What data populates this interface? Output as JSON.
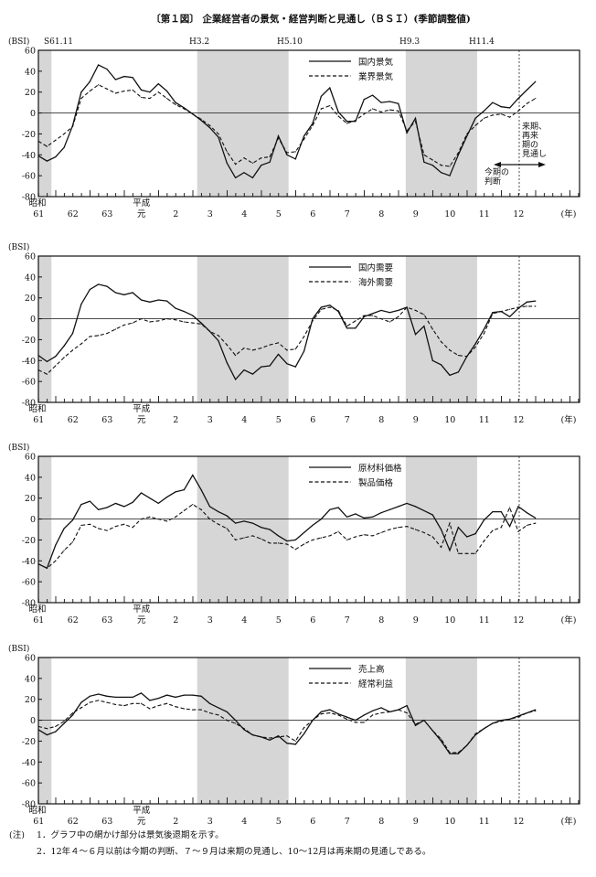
{
  "title": "〔第１図〕 企業経営者の景気・経営判断と見通し（ＢＳＩ）(季節調整値)",
  "colors": {
    "line": "#111111",
    "shading": "#d6d6d6",
    "zero_line": "#333333"
  },
  "x_axis": {
    "era_top": [
      "昭和",
      "平成"
    ],
    "years": [
      "61",
      "62",
      "63",
      "元",
      "2",
      "3",
      "4",
      "5",
      "6",
      "7",
      "8",
      "9",
      "10",
      "11",
      "12"
    ],
    "unit": "(年)"
  },
  "recession_labels": [
    "S61.11",
    "H3.2",
    "H5.10",
    "H9.3",
    "H11.4"
  ],
  "forecast_annotations": {
    "current": [
      "今期の",
      "判断"
    ],
    "forecast": [
      "来期、",
      "再来",
      "期の",
      "見通し"
    ]
  },
  "notes": {
    "marker": "(注)",
    "items": [
      "1．グラフ中の網かけ部分は景気後退期を示す。",
      "2．12年４～６月以前は今期の判断、７～９月は来期の見通し、10～12月は再来期の見通しである。"
    ]
  },
  "chart_data": [
    {
      "type": "line",
      "ylabel": "(BSI)",
      "ylim": [
        -80,
        60
      ],
      "yticks": [
        60,
        40,
        20,
        0,
        -20,
        -40,
        -60,
        -80
      ],
      "period": {
        "start": "1986 Q2",
        "end": "2000 Q4",
        "frequency": "quarterly"
      },
      "legend_position": "top-right",
      "series": [
        {
          "name": "国内景気",
          "style": "solid",
          "values": [
            -41,
            -46,
            -42,
            -33,
            -12,
            20,
            30,
            46,
            42,
            32,
            35,
            34,
            22,
            20,
            28,
            21,
            10,
            5,
            -1,
            -7,
            -14,
            -23,
            -48,
            -62,
            -57,
            -62,
            -50,
            -47,
            -22,
            -40,
            -44,
            -22,
            -10,
            16,
            24,
            1,
            -8,
            -8,
            13,
            17,
            10,
            11,
            9,
            -19,
            -5,
            -47,
            -50,
            -57,
            -60,
            -40,
            -22,
            -5,
            2,
            10,
            6,
            5,
            14,
            22,
            30
          ]
        },
        {
          "name": "業界景気",
          "style": "dashed",
          "values": [
            -27,
            -32,
            -26,
            -20,
            -13,
            14,
            21,
            27,
            23,
            19,
            21,
            22,
            15,
            14,
            20,
            14,
            8,
            4,
            -1,
            -6,
            -12,
            -20,
            -37,
            -49,
            -43,
            -48,
            -43,
            -42,
            -24,
            -38,
            -37,
            -25,
            -12,
            4,
            7,
            -3,
            -10,
            -7,
            -1,
            4,
            1,
            3,
            2,
            -17,
            -8,
            -40,
            -45,
            -50,
            -51,
            -38,
            -20,
            -12,
            -5,
            -2,
            -1,
            -4,
            2,
            9,
            14
          ]
        }
      ]
    },
    {
      "type": "line",
      "ylabel": "(BSI)",
      "ylim": [
        -80,
        60
      ],
      "yticks": [
        60,
        40,
        20,
        0,
        -20,
        -40,
        -60,
        -80
      ],
      "period": {
        "start": "1986 Q2",
        "end": "2000 Q4",
        "frequency": "quarterly"
      },
      "legend_position": "top-right",
      "series": [
        {
          "name": "国内需要",
          "style": "solid",
          "values": [
            -35,
            -41,
            -36,
            -26,
            -14,
            14,
            28,
            33,
            31,
            25,
            23,
            25,
            18,
            16,
            18,
            17,
            10,
            7,
            3,
            -4,
            -12,
            -21,
            -42,
            -58,
            -49,
            -53,
            -46,
            -45,
            -34,
            -43,
            -46,
            -31,
            0,
            11,
            13,
            7,
            -9,
            -9,
            2,
            5,
            8,
            6,
            8,
            11,
            -15,
            -7,
            -40,
            -44,
            -54,
            -51,
            -36,
            -24,
            -10,
            6,
            7,
            2,
            10,
            16,
            17
          ]
        },
        {
          "name": "海外需要",
          "style": "dashed",
          "values": [
            -49,
            -53,
            -45,
            -37,
            -30,
            -24,
            -17,
            -16,
            -14,
            -10,
            -6,
            -4,
            0,
            -3,
            -2,
            0,
            -1,
            -3,
            -4,
            -5,
            -12,
            -16,
            -25,
            -35,
            -28,
            -30,
            -28,
            -25,
            -23,
            -30,
            -29,
            -17,
            -2,
            9,
            11,
            8,
            -7,
            -2,
            3,
            3,
            0,
            -3,
            2,
            11,
            8,
            4,
            -10,
            -22,
            -30,
            -35,
            -36,
            -27,
            -14,
            5,
            7,
            9,
            11,
            12,
            12
          ]
        }
      ]
    },
    {
      "type": "line",
      "ylabel": "(BSI)",
      "ylim": [
        -80,
        60
      ],
      "yticks": [
        60,
        40,
        20,
        0,
        -20,
        -40,
        -60,
        -80
      ],
      "period": {
        "start": "1986 Q2",
        "end": "2000 Q4",
        "frequency": "quarterly"
      },
      "legend_position": "top-right",
      "series": [
        {
          "name": "原材料価格",
          "style": "solid",
          "values": [
            -43,
            -47,
            -25,
            -9,
            -1,
            14,
            17,
            9,
            11,
            15,
            12,
            16,
            25,
            20,
            15,
            21,
            26,
            28,
            42,
            28,
            12,
            7,
            3,
            -4,
            -2,
            -4,
            -8,
            -10,
            -16,
            -21,
            -20,
            -13,
            -6,
            0,
            9,
            11,
            2,
            5,
            1,
            2,
            6,
            9,
            12,
            15,
            12,
            8,
            4,
            -10,
            -30,
            -8,
            -17,
            -14,
            -1,
            7,
            7,
            -7,
            12,
            6,
            1
          ]
        },
        {
          "name": "製品価格",
          "style": "dashed",
          "values": [
            -43,
            -47,
            -40,
            -30,
            -22,
            -6,
            -5,
            -9,
            -11,
            -7,
            -5,
            -8,
            0,
            2,
            0,
            -2,
            2,
            8,
            14,
            9,
            0,
            -5,
            -9,
            -20,
            -18,
            -16,
            -19,
            -23,
            -23,
            -24,
            -29,
            -24,
            -20,
            -18,
            -16,
            -12,
            -20,
            -17,
            -15,
            -16,
            -13,
            -10,
            -8,
            -7,
            -10,
            -13,
            -17,
            -27,
            -4,
            -33,
            -33,
            -33,
            -21,
            -11,
            -8,
            11,
            -12,
            -6,
            -4
          ]
        }
      ]
    },
    {
      "type": "line",
      "ylabel": "(BSI)",
      "ylim": [
        -80,
        60
      ],
      "yticks": [
        60,
        40,
        20,
        0,
        -20,
        -40,
        -60,
        -80
      ],
      "period": {
        "start": "1986 Q2",
        "end": "2000 Q4",
        "frequency": "quarterly"
      },
      "legend_position": "top-right",
      "series": [
        {
          "name": "売上高",
          "style": "solid",
          "values": [
            -9,
            -14,
            -11,
            -3,
            5,
            17,
            23,
            25,
            23,
            22,
            22,
            22,
            26,
            19,
            21,
            24,
            22,
            24,
            24,
            23,
            16,
            12,
            8,
            0,
            -9,
            -14,
            -16,
            -19,
            -15,
            -22,
            -23,
            -13,
            0,
            8,
            10,
            6,
            3,
            0,
            5,
            9,
            12,
            8,
            10,
            14,
            -5,
            0,
            -10,
            -20,
            -32,
            -32,
            -24,
            -14,
            -8,
            -3,
            0,
            1,
            4,
            7,
            10
          ]
        },
        {
          "name": "経常利益",
          "style": "dashed",
          "values": [
            -6,
            -8,
            -6,
            -1,
            7,
            12,
            17,
            19,
            17,
            15,
            14,
            16,
            16,
            11,
            14,
            16,
            13,
            11,
            10,
            10,
            7,
            5,
            0,
            -3,
            -8,
            -14,
            -16,
            -17,
            -16,
            -15,
            -20,
            -7,
            0,
            6,
            7,
            5,
            1,
            -2,
            -2,
            5,
            7,
            8,
            10,
            7,
            -4,
            0,
            -10,
            -18,
            -31,
            -31,
            -24,
            -13,
            -8,
            -3,
            -1,
            1,
            3,
            7,
            9
          ]
        }
      ]
    }
  ]
}
